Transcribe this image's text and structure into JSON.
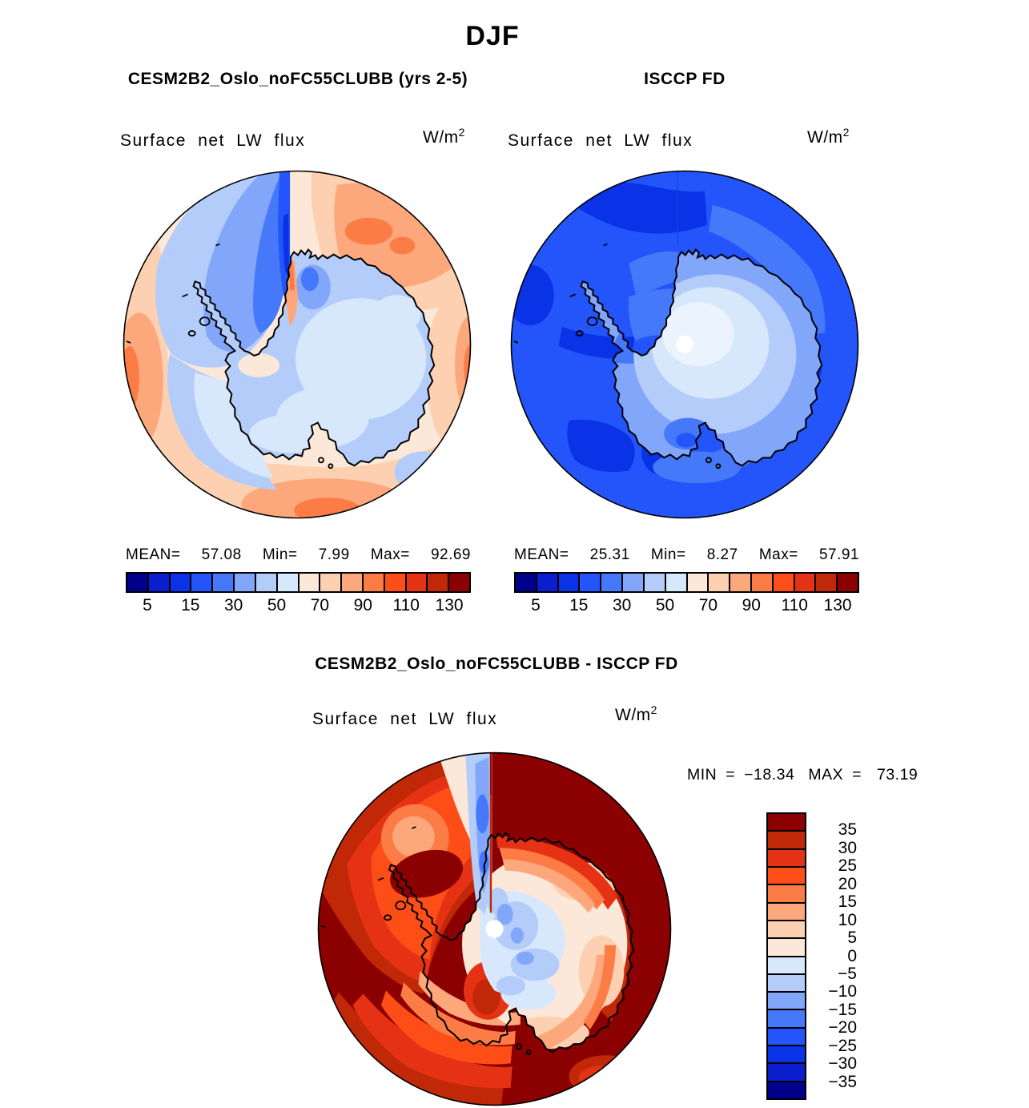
{
  "title": "DJF",
  "left_panel": {
    "title": "CESM2B2_Oslo_noFC55CLUBB (yrs 2-5)",
    "field": "Surface net LW flux",
    "units": "W/m",
    "units_sup": "2",
    "mean_label": "MEAN=",
    "mean": "57.08",
    "min_label": "Min=",
    "min": "7.99",
    "max_label": "Max=",
    "max": "92.69"
  },
  "right_panel": {
    "title": "ISCCP FD",
    "field": "Surface net LW flux",
    "units": "W/m",
    "units_sup": "2",
    "mean_label": "MEAN=",
    "mean": "25.31",
    "min_label": "Min=",
    "min": "8.27",
    "max_label": "Max=",
    "max": "57.91"
  },
  "diff_panel": {
    "title": "CESM2B2_Oslo_noFC55CLUBB - ISCCP FD",
    "field": "Surface net LW flux",
    "units": "W/m",
    "units_sup": "2",
    "min_label": "MIN",
    "eq1": "=",
    "min": "−18.34",
    "max_label": "MAX",
    "eq2": "=",
    "max": "73.19"
  },
  "colorbar": {
    "palette": [
      "#00008B",
      "#0A1ECD",
      "#0A32E6",
      "#2355FA",
      "#4678FA",
      "#82A6FA",
      "#B4CCFA",
      "#D8E8FC",
      "#FCE8D8",
      "#FCD0B0",
      "#FCA87C",
      "#FC7C46",
      "#FC4E16",
      "#E63214",
      "#C02808",
      "#8B0000"
    ],
    "tick_labels": [
      "5",
      "15",
      "30",
      "50",
      "70",
      "90",
      "110",
      "130"
    ],
    "tick_positions": [
      1,
      3,
      5,
      7,
      9,
      11,
      13,
      15
    ]
  },
  "diff_colorbar": {
    "palette": [
      "#8B0000",
      "#C02808",
      "#E63214",
      "#FC4E16",
      "#FC7C46",
      "#FCA87C",
      "#FCD0B0",
      "#FCE8D8",
      "#D8E8FC",
      "#B4CCFA",
      "#82A6FA",
      "#4678FA",
      "#2355FA",
      "#0A32E6",
      "#0A1ECD",
      "#00008B"
    ],
    "tick_labels": [
      "35",
      "30",
      "25",
      "20",
      "15",
      "10",
      "5",
      "0",
      "−5",
      "−10",
      "−15",
      "−20",
      "−25",
      "−30",
      "−35"
    ]
  },
  "chart_data": [
    {
      "type": "heatmap",
      "title": "CESM2B2_Oslo_noFC55CLUBB (yrs 2-5)",
      "season": "DJF",
      "variable": "Surface net LW flux",
      "units": "W/m2",
      "projection": "south polar stereographic",
      "stats": {
        "mean": 57.08,
        "min": 7.99,
        "max": 92.69
      },
      "colorbar_ticks": [
        5,
        15,
        30,
        50,
        70,
        90,
        110,
        130
      ],
      "n_color_cells": 16,
      "legend_position": "bottom"
    },
    {
      "type": "heatmap",
      "title": "ISCCP FD",
      "season": "DJF",
      "variable": "Surface net LW flux",
      "units": "W/m2",
      "projection": "south polar stereographic",
      "stats": {
        "mean": 25.31,
        "min": 8.27,
        "max": 57.91
      },
      "colorbar_ticks": [
        5,
        15,
        30,
        50,
        70,
        90,
        110,
        130
      ],
      "n_color_cells": 16,
      "legend_position": "bottom"
    },
    {
      "type": "heatmap",
      "title": "CESM2B2_Oslo_noFC55CLUBB - ISCCP FD",
      "season": "DJF",
      "variable": "Surface net LW flux",
      "units": "W/m2",
      "projection": "south polar stereographic",
      "stats": {
        "min": -18.34,
        "max": 73.19
      },
      "colorbar_ticks": [
        35,
        30,
        25,
        20,
        15,
        10,
        5,
        0,
        -5,
        -10,
        -15,
        -20,
        -25,
        -30,
        -35
      ],
      "n_color_cells": 16,
      "legend_position": "right"
    }
  ]
}
